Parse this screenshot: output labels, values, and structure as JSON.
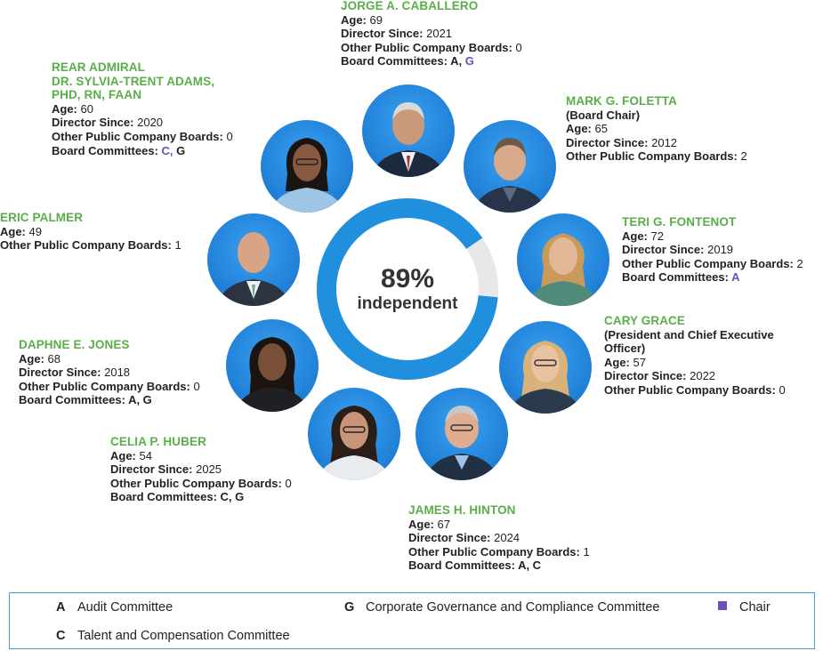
{
  "stat": {
    "percent": "89%",
    "label": "independent",
    "fraction": 0.89
  },
  "colors": {
    "ring": "#1f8fde",
    "ring_rest": "#e6e8ea",
    "name": "#5aae4a",
    "accent": "#6b4fbb",
    "photo_bg": "#2a8fe8"
  },
  "directors": [
    {
      "name": "JORGE A. CABALLERO",
      "age": "69",
      "director_since": "2021",
      "other_boards": "0",
      "committees_a": "A,",
      "committees_b": "G"
    },
    {
      "name": "MARK G. FOLETTA",
      "note": "(Board Chair)",
      "age": "65",
      "director_since": "2012",
      "other_boards": "2"
    },
    {
      "name": "TERI G. FONTENOT",
      "age": "72",
      "director_since": "2019",
      "other_boards": "2",
      "committees": "A"
    },
    {
      "name": "CARY GRACE",
      "note_line1": "(President and Chief Executive",
      "note_line2": "Officer)",
      "age": "57",
      "director_since": "2022",
      "other_boards": "0"
    },
    {
      "name": "JAMES H. HINTON",
      "age": "67",
      "director_since": "2024",
      "other_boards": "1",
      "committees": "A, C"
    },
    {
      "name": "CELIA P. HUBER",
      "age": "54",
      "director_since": "2025",
      "other_boards": "0",
      "committees": "C, G"
    },
    {
      "name": "DAPHNE E. JONES",
      "age": "68",
      "director_since": "2018",
      "other_boards": "0",
      "committees": "A, G"
    },
    {
      "name": "ERIC PALMER",
      "age": "49",
      "other_boards": "1"
    },
    {
      "name_line1": "REAR ADMIRAL",
      "name_line2": "DR. SYLVIA-TRENT ADAMS,",
      "name_line3": "PHD, RN, FAAN",
      "age": "60",
      "director_since": "2020",
      "other_boards": "0",
      "committees_a": "C,",
      "committees_b": "G"
    }
  ],
  "labels": {
    "age": "Age:",
    "director_since": "Director Since:",
    "other_boards": "Other Public Company Boards:",
    "committees": "Board Committees:"
  },
  "legend": {
    "a_key": "A",
    "a_label": "Audit Committee",
    "g_key": "G",
    "g_label": "Corporate Governance and Compliance Committee",
    "chair_label": "Chair",
    "c_key": "C",
    "c_label": "Talent and Compensation Committee"
  }
}
